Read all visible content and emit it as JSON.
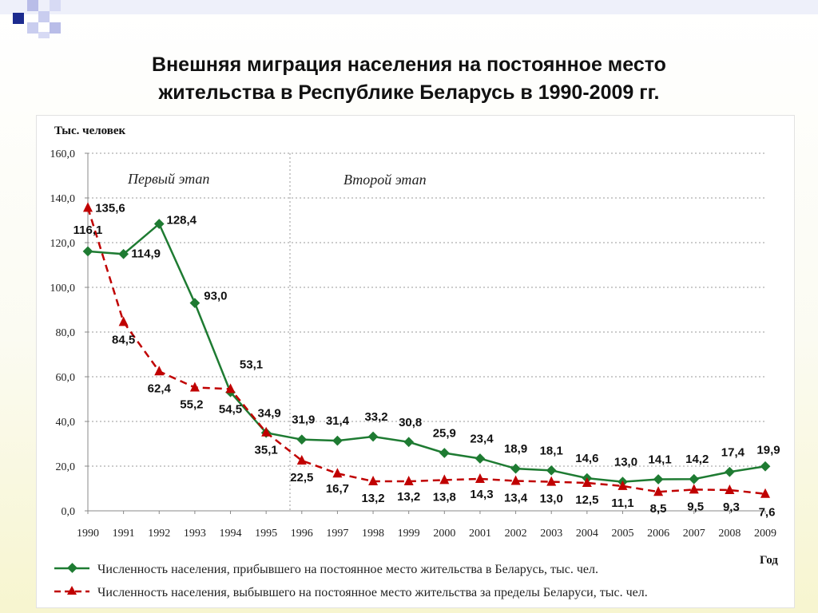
{
  "slide": {
    "title_line1": "Внешняя миграция населения на постоянное место",
    "title_line2": "жительства в Республике Беларусь в 1990-2009 гг."
  },
  "chart_data": {
    "type": "line",
    "ylabel": "Тыс. человек",
    "xlabel": "Год",
    "ylim": [
      0,
      160
    ],
    "yticks": [
      "0,0",
      "20,0",
      "40,0",
      "60,0",
      "80,0",
      "100,0",
      "120,0",
      "140,0",
      "160,0"
    ],
    "grid": true,
    "legend_position": "bottom",
    "categories": [
      "1990",
      "1991",
      "1992",
      "1993",
      "1994",
      "1995",
      "1996",
      "1997",
      "1998",
      "1999",
      "2000",
      "2001",
      "2002",
      "2003",
      "2004",
      "2005",
      "2006",
      "2007",
      "2008",
      "2009"
    ],
    "annotations": [
      {
        "text": "Первый этап"
      },
      {
        "text": "Второй этап"
      }
    ],
    "series": [
      {
        "name": "Численность населения, прибывшего на постоянное место жительства в Беларусь, тыс. чел.",
        "color": "#1e7b32",
        "style": "solid",
        "marker": "diamond",
        "values": [
          116.1,
          114.9,
          128.4,
          93.0,
          53.1,
          34.9,
          31.9,
          31.4,
          33.2,
          30.8,
          25.9,
          23.4,
          18.9,
          18.1,
          14.6,
          13.0,
          14.1,
          14.2,
          17.4,
          19.9
        ],
        "labels": [
          "116,1",
          "114,9",
          "128,4",
          "93,0",
          "53,1",
          "34,9",
          "31,9",
          "31,4",
          "33,2",
          "30,8",
          "25,9",
          "23,4",
          "18,9",
          "18,1",
          "14,6",
          "13,0",
          "14,1",
          "14,2",
          "17,4",
          "19,9"
        ]
      },
      {
        "name": "Численность населения, выбывшего на постоянное место жительства за пределы Беларуси, тыс. чел.",
        "color": "#c00000",
        "style": "dashed",
        "marker": "triangle",
        "values": [
          135.6,
          84.5,
          62.4,
          55.2,
          54.5,
          35.1,
          22.5,
          16.7,
          13.2,
          13.2,
          13.8,
          14.3,
          13.4,
          13.0,
          12.5,
          11.1,
          8.5,
          9.5,
          9.3,
          7.6
        ],
        "labels": [
          "135,6",
          "84,5",
          "62,4",
          "55,2",
          "54,5",
          "35,1",
          "22,5",
          "16,7",
          "13,2",
          "13,2",
          "13,8",
          "14,3",
          "13,4",
          "13,0",
          "12,5",
          "11,1",
          "8,5",
          "9,5",
          "9,3",
          "7,6"
        ]
      }
    ]
  }
}
